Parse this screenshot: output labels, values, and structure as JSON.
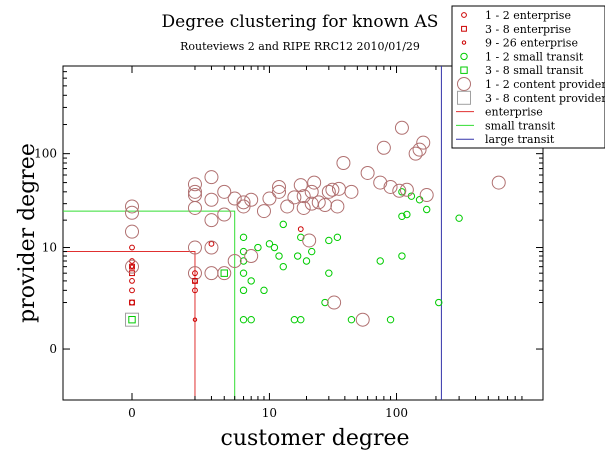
{
  "chart_data": {
    "type": "scatter",
    "title": "Degree clustering for known AS",
    "subtitle": "Routeviews 2 and RIPE RRC12 2010/01/29",
    "xlabel": "customer degree",
    "ylabel": "provider degree",
    "x_scale": "log(1+x)",
    "y_scale": "log(1+y)",
    "xlim": [
      -0.7,
      1300
    ],
    "ylim": [
      -0.7,
      800
    ],
    "x_ticks": [
      {
        "value": 0,
        "label": "0"
      },
      {
        "value": 10,
        "label": "10"
      },
      {
        "value": 100,
        "label": "100"
      }
    ],
    "y_ticks": [
      {
        "value": 0,
        "label": "0"
      },
      {
        "value": 10,
        "label": "10"
      },
      {
        "value": 100,
        "label": "100"
      }
    ],
    "grid": false,
    "legend_position": "top-right",
    "series": [
      {
        "name": "1 - 2 enterprise",
        "marker": "circle-small",
        "color": "#cc0000",
        "points": [
          [
            0,
            10
          ],
          [
            0,
            7
          ],
          [
            0,
            4
          ],
          [
            0,
            3
          ],
          [
            0,
            2
          ],
          [
            2,
            3
          ],
          [
            2,
            4
          ],
          [
            2,
            5
          ],
          [
            3,
            11
          ],
          [
            18,
            16
          ]
        ]
      },
      {
        "name": "3 - 8 enterprise",
        "marker": "square-small",
        "color": "#cc0000",
        "points": [
          [
            0,
            6
          ],
          [
            0,
            5
          ],
          [
            0,
            2
          ],
          [
            2,
            4
          ]
        ]
      },
      {
        "name": "9 - 26 enterprise",
        "marker": "circle-tiny",
        "color": "#cc0000",
        "points": [
          [
            0,
            6
          ],
          [
            2,
            1
          ]
        ]
      },
      {
        "name": "1 - 2 small transit",
        "marker": "circle-medium",
        "color": "#00cc00",
        "points": [
          [
            6,
            1
          ],
          [
            6,
            3
          ],
          [
            6,
            5
          ],
          [
            6,
            7
          ],
          [
            6,
            9
          ],
          [
            6,
            13
          ],
          [
            7,
            1
          ],
          [
            7,
            4
          ],
          [
            8,
            10
          ],
          [
            9,
            3
          ],
          [
            10,
            11
          ],
          [
            11,
            10
          ],
          [
            12,
            8
          ],
          [
            13,
            18
          ],
          [
            13,
            6
          ],
          [
            16,
            1
          ],
          [
            17,
            8
          ],
          [
            18,
            1
          ],
          [
            18,
            13
          ],
          [
            20,
            7
          ],
          [
            22,
            9
          ],
          [
            28,
            2
          ],
          [
            30,
            5
          ],
          [
            30,
            12
          ],
          [
            35,
            13
          ],
          [
            45,
            1
          ],
          [
            75,
            7
          ],
          [
            90,
            1
          ],
          [
            110,
            8
          ],
          [
            110,
            22
          ],
          [
            110,
            40
          ],
          [
            120,
            23
          ],
          [
            130,
            36
          ],
          [
            150,
            33
          ],
          [
            170,
            26
          ],
          [
            210,
            2
          ],
          [
            300,
            21
          ]
        ]
      },
      {
        "name": "3 - 8 small transit",
        "marker": "square-medium",
        "color": "#00cc00",
        "points": [
          [
            0,
            1
          ],
          [
            4,
            5
          ]
        ]
      },
      {
        "name": "1 - 2 content provider",
        "marker": "circle-large",
        "color": "#b07070",
        "points": [
          [
            0,
            6
          ],
          [
            0,
            15
          ],
          [
            0,
            24
          ],
          [
            0,
            28
          ],
          [
            2,
            5
          ],
          [
            2,
            10
          ],
          [
            2,
            27
          ],
          [
            2,
            37
          ],
          [
            2,
            40
          ],
          [
            2,
            48
          ],
          [
            3,
            10
          ],
          [
            3,
            5
          ],
          [
            3,
            20
          ],
          [
            3,
            33
          ],
          [
            3,
            57
          ],
          [
            4,
            5
          ],
          [
            4,
            23
          ],
          [
            4,
            40
          ],
          [
            5,
            7
          ],
          [
            5,
            34
          ],
          [
            6,
            28
          ],
          [
            6,
            31
          ],
          [
            7,
            8
          ],
          [
            7,
            33
          ],
          [
            9,
            25
          ],
          [
            10,
            34
          ],
          [
            12,
            40
          ],
          [
            12,
            45
          ],
          [
            14,
            28
          ],
          [
            16,
            35
          ],
          [
            18,
            47
          ],
          [
            19,
            27
          ],
          [
            19,
            36
          ],
          [
            21,
            12
          ],
          [
            22,
            30
          ],
          [
            22,
            40
          ],
          [
            23,
            50
          ],
          [
            25,
            31
          ],
          [
            28,
            29
          ],
          [
            30,
            40
          ],
          [
            32,
            42
          ],
          [
            33,
            2
          ],
          [
            35,
            28
          ],
          [
            36,
            43
          ],
          [
            39,
            80
          ],
          [
            45,
            40
          ],
          [
            55,
            1
          ],
          [
            60,
            63
          ],
          [
            75,
            50
          ],
          [
            80,
            115
          ],
          [
            90,
            45
          ],
          [
            105,
            41
          ],
          [
            110,
            185
          ],
          [
            120,
            42
          ],
          [
            140,
            100
          ],
          [
            150,
            110
          ],
          [
            160,
            130
          ],
          [
            170,
            37
          ],
          [
            600,
            50
          ]
        ]
      },
      {
        "name": "3 - 8 content provider",
        "marker": "square-large",
        "color": "#a0a0a0",
        "points": [
          [
            0,
            1
          ]
        ]
      },
      {
        "name": "enterprise",
        "type": "boundary",
        "color": "#e03030",
        "x": 2,
        "y": 9
      },
      {
        "name": "small transit",
        "type": "boundary",
        "color": "#33dd33",
        "x": 5,
        "y": 25
      },
      {
        "name": "large transit",
        "type": "boundary",
        "color": "#3333aa",
        "x": 220,
        "y": null
      }
    ]
  }
}
